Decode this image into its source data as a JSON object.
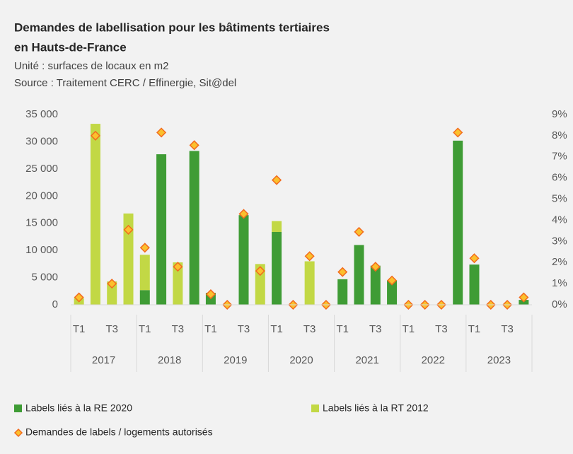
{
  "chart_data": {
    "type": "bar",
    "stacked": true,
    "title": [
      "Demandes de labellisation pour les bâtiments tertiaires",
      "en Hauts-de-France"
    ],
    "subtitle": [
      "Unité : surfaces de locaux en m2",
      "Source :  Traitement CERC / Effinergie, Sit@del"
    ],
    "categories": [
      "T1",
      null,
      "T3",
      null,
      "T1",
      null,
      "T3",
      null,
      "T1",
      null,
      "T3",
      null,
      "T1",
      null,
      "T3",
      null,
      "T1",
      null,
      "T3",
      null,
      "T1",
      null,
      "T3",
      null,
      "T1",
      null,
      "T3",
      null
    ],
    "groups": [
      "2017",
      "2018",
      "2019",
      "2020",
      "2021",
      "2022",
      "2023"
    ],
    "series": [
      {
        "name": "Labels liés à la RE 2020",
        "color": "#3f9c35",
        "values": [
          0,
          0,
          0,
          0,
          2700,
          27700,
          0,
          28300,
          2200,
          0,
          16500,
          0,
          13400,
          0,
          0,
          0,
          4700,
          11000,
          7200,
          4500,
          0,
          0,
          0,
          30200,
          7400,
          0,
          0,
          900
        ]
      },
      {
        "name": "Labels liés à la RT 2012",
        "color": "#c2d845",
        "values": [
          1200,
          33300,
          4300,
          16800,
          6500,
          0,
          7800,
          0,
          0,
          0,
          0,
          7500,
          2000,
          0,
          8000,
          0,
          0,
          0,
          0,
          0,
          0,
          0,
          0,
          0,
          0,
          0,
          0,
          0
        ]
      },
      {
        "name": "Demandes de labels / logements autorisés",
        "type": "scatter",
        "axis": "y2",
        "color": "#fbc02d",
        "edge_color": "#f26b1d",
        "values": [
          0.35,
          8.0,
          1.0,
          3.55,
          2.7,
          8.15,
          1.8,
          7.55,
          0.5,
          0,
          4.3,
          1.6,
          5.9,
          0,
          2.3,
          0,
          1.55,
          3.45,
          1.8,
          1.15,
          0,
          0,
          0,
          8.15,
          2.2,
          0,
          0,
          0.35
        ]
      }
    ],
    "ylim": [
      0,
      35000
    ],
    "yticks": [
      0,
      {
        "value": 5000,
        "label": "5 000"
      },
      {
        "value": 10000,
        "label": "10 000"
      },
      {
        "value": 15000,
        "label": "15 000"
      },
      {
        "value": 20000,
        "label": "20 000"
      },
      {
        "value": 25000,
        "label": "25 000"
      },
      {
        "value": 30000,
        "label": "30 000"
      },
      {
        "value": 35000,
        "label": "35 000"
      }
    ],
    "y2lim": [
      0,
      9
    ],
    "y2ticks": [
      {
        "value": 0,
        "label": "0%"
      },
      {
        "value": 1,
        "label": "1%"
      },
      {
        "value": 2,
        "label": "2%"
      },
      {
        "value": 3,
        "label": "3%"
      },
      {
        "value": 4,
        "label": "4%"
      },
      {
        "value": 5,
        "label": "5%"
      },
      {
        "value": 6,
        "label": "6%"
      },
      {
        "value": 7,
        "label": "7%"
      },
      {
        "value": 8,
        "label": "8%"
      },
      {
        "value": 9,
        "label": "9%"
      }
    ],
    "grid": false,
    "legend": "bottom"
  }
}
